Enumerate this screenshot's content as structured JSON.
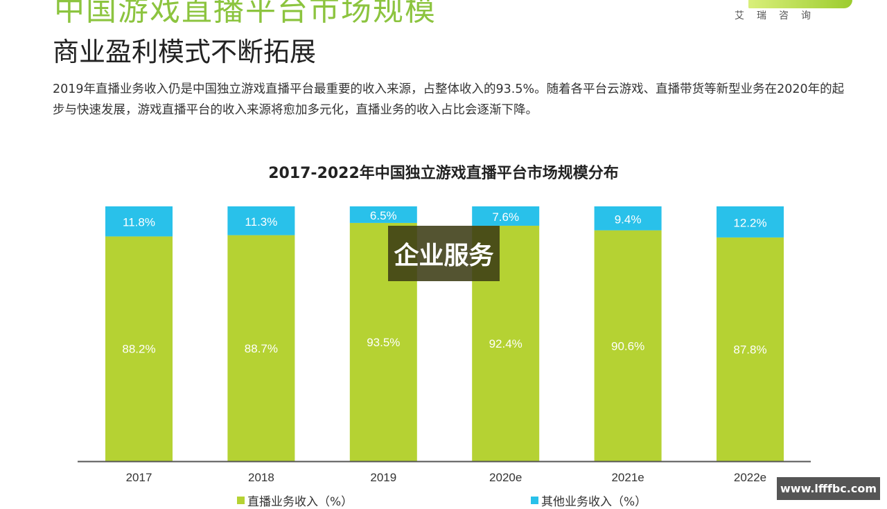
{
  "header": {
    "title": "中国游戏直播平台市场规模",
    "subtitle": "商业盈利模式不断拓展",
    "description": "2019年直播业务收入仍是中国独立游戏直播平台最重要的收入来源，占整体收入的93.5%。随着各平台云游戏、直播带货等新型业务在2020年的起步与快速发展，游戏直播平台的收入来源将愈加多元化，直播业务的收入占比会逐渐下降。",
    "logo_text": "艾瑞咨询"
  },
  "overlay_text": "企业服务",
  "watermark": "www.lfffbc.com",
  "chart_data": {
    "type": "bar",
    "stacked": true,
    "title": "2017-2022年中国独立游戏直播平台市场规模分布",
    "categories": [
      "2017",
      "2018",
      "2019",
      "2020e",
      "2021e",
      "2022e"
    ],
    "ylim": [
      0,
      100
    ],
    "grid": false,
    "legend_position": "bottom",
    "series": [
      {
        "name": "直播业务收入（%）",
        "color": "#b5d233",
        "values": [
          88.2,
          88.7,
          93.5,
          92.4,
          90.6,
          87.8
        ],
        "labels": [
          "88.2%",
          "88.7%",
          "93.5%",
          "92.4%",
          "90.6%",
          "87.8%"
        ]
      },
      {
        "name": "其他业务收入（%）",
        "color": "#29c1ea",
        "values": [
          11.8,
          11.3,
          6.5,
          7.6,
          9.4,
          12.2
        ],
        "labels": [
          "11.8%",
          "11.3%",
          "6.5%",
          "7.6%",
          "9.4%",
          "12.2%"
        ]
      }
    ]
  }
}
